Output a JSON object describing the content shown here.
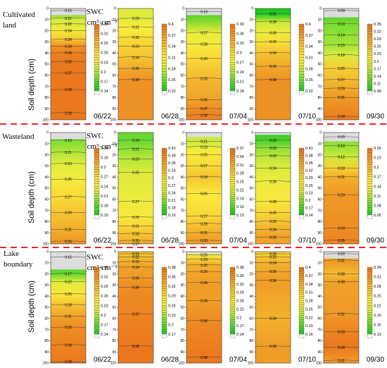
{
  "figure": {
    "y_axis_label": "Soil depth (cm)",
    "colorbar_title_line1": "SWC",
    "colorbar_title_line2": "(cm³·cm⁻³)",
    "y_ticks": [
      "0",
      "10",
      "20",
      "30",
      "40",
      "50",
      "60",
      "70",
      "80",
      "90",
      "100"
    ]
  },
  "chart_data": {
    "type": "heatmap",
    "xlabel": "",
    "ylabel": "Soil depth (cm)",
    "ylim": [
      0,
      100
    ],
    "rows": [
      {
        "label_lines": [
          "Cultivated",
          "land"
        ],
        "panels": [
          {
            "date": "06/22",
            "top_depth": 6,
            "iso": [
              {
                "d": 2,
                "v": "0.15"
              },
              {
                "d": 9,
                "v": "0.21"
              },
              {
                "d": 14,
                "v": "0.22"
              },
              {
                "d": 20,
                "v": "0.24"
              },
              {
                "d": 28,
                "v": "0.28"
              },
              {
                "d": 34,
                "v": "0.33"
              },
              {
                "d": 40,
                "v": "0.34"
              },
              {
                "d": 48,
                "v": "0.36"
              },
              {
                "d": 58,
                "v": "0.37"
              },
              {
                "d": 73,
                "v": "0.38"
              },
              {
                "d": 94,
                "v": "0.39"
              }
            ],
            "cbar": [
              "0.35",
              "0.32",
              "0.29",
              "0.26",
              "0.23",
              "0.2",
              "0.17",
              "0.14"
            ]
          },
          {
            "date": "06/28",
            "top_depth": 0,
            "iso": [
              {
                "d": 9,
                "v": "0.29"
              },
              {
                "d": 17,
                "v": "0.31"
              },
              {
                "d": 26,
                "v": "0.32"
              },
              {
                "d": 34,
                "v": "0.33"
              },
              {
                "d": 44,
                "v": "0.34"
              },
              {
                "d": 54,
                "v": "0.36"
              },
              {
                "d": 64,
                "v": "0.38"
              }
            ],
            "cbar": [
              "0.4",
              "0.37",
              "0.34",
              "0.31",
              "0.28",
              "0.25",
              "0.22"
            ]
          },
          {
            "date": "07/04",
            "top_depth": 6,
            "iso": [
              {
                "d": 3,
                "v": "0.19"
              },
              {
                "d": 22,
                "v": "0.27"
              },
              {
                "d": 32,
                "v": "0.28"
              },
              {
                "d": 45,
                "v": "0.30"
              },
              {
                "d": 63,
                "v": "0.33"
              },
              {
                "d": 82,
                "v": "0.35"
              },
              {
                "d": 90,
                "v": "0.37"
              },
              {
                "d": 96,
                "v": "0.38"
              }
            ],
            "cbar": [
              "0.39",
              "0.36",
              "0.33",
              "0.3",
              "0.27",
              "0.24",
              "0.21",
              "0.18"
            ]
          },
          {
            "date": "07/10",
            "top_depth": 0,
            "iso": [
              {
                "d": 5,
                "v": "0.21"
              },
              {
                "d": 12,
                "v": "0.28"
              },
              {
                "d": 22,
                "v": "0.30"
              },
              {
                "d": 30,
                "v": "0.32"
              },
              {
                "d": 40,
                "v": "0.34"
              },
              {
                "d": 52,
                "v": "0.36"
              },
              {
                "d": 64,
                "v": "0.38"
              }
            ],
            "cbar": [
              "0.4",
              "0.37",
              "0.34",
              "0.31",
              "0.28",
              "0.25",
              "0.22"
            ]
          },
          {
            "date": "09/30",
            "top_depth": 8,
            "iso": [
              {
                "d": 2,
                "v": "0.09"
              },
              {
                "d": 14,
                "v": "0.13"
              },
              {
                "d": 24,
                "v": "0.14"
              },
              {
                "d": 33,
                "v": "0.15"
              },
              {
                "d": 42,
                "v": "0.18"
              },
              {
                "d": 54,
                "v": "0.25"
              },
              {
                "d": 64,
                "v": "0.27"
              },
              {
                "d": 72,
                "v": "0.29"
              },
              {
                "d": 80,
                "v": "0.31"
              },
              {
                "d": 97,
                "v": "0.34"
              }
            ],
            "cbar": [
              "0.35",
              "0.32",
              "0.29",
              "0.26",
              "0.23",
              "0.2",
              "0.17",
              "0.14",
              "0.11",
              "0.08"
            ]
          }
        ]
      },
      {
        "label_lines": [
          "Wasteland"
        ],
        "panels": [
          {
            "date": "06/22",
            "top_depth": 6,
            "iso": [
              {
                "d": 7,
                "v": "0.19"
              },
              {
                "d": 18,
                "v": "0.21"
              },
              {
                "d": 28,
                "v": "0.23"
              },
              {
                "d": 42,
                "v": "0.25"
              },
              {
                "d": 58,
                "v": "0.27"
              },
              {
                "d": 72,
                "v": "0.29"
              },
              {
                "d": 87,
                "v": "0.31"
              },
              {
                "d": 98,
                "v": "0.33"
              }
            ],
            "cbar": [
              "0.36",
              "0.33",
              "0.3",
              "0.27",
              "0.24",
              "0.21",
              "0.18",
              "0.15"
            ]
          },
          {
            "date": "06/28",
            "top_depth": 0,
            "iso": [
              {
                "d": 7,
                "v": "0.19"
              },
              {
                "d": 15,
                "v": "0.21"
              },
              {
                "d": 24,
                "v": "0.23"
              },
              {
                "d": 36,
                "v": "0.25"
              },
              {
                "d": 62,
                "v": "0.27"
              },
              {
                "d": 76,
                "v": "0.29"
              },
              {
                "d": 84,
                "v": "0.31"
              },
              {
                "d": 91,
                "v": "0.33"
              },
              {
                "d": 97,
                "v": "0.35"
              },
              {
                "d": 100,
                "v": "0.37"
              }
            ],
            "cbar": [
              "0.42",
              "0.39",
              "0.36",
              "0.33",
              "0.3",
              "0.27",
              "0.24",
              "0.21",
              "0.18",
              "0.15"
            ]
          },
          {
            "date": "07/04",
            "top_depth": 4,
            "iso": [
              {
                "d": 8,
                "v": "0.21"
              },
              {
                "d": 13,
                "v": "0.23"
              },
              {
                "d": 20,
                "v": "0.25"
              },
              {
                "d": 30,
                "v": "0.27"
              },
              {
                "d": 40,
                "v": "0.29"
              },
              {
                "d": 55,
                "v": "0.25"
              },
              {
                "d": 75,
                "v": "0.27"
              },
              {
                "d": 82,
                "v": "0.29"
              },
              {
                "d": 90,
                "v": "0.31"
              },
              {
                "d": 97,
                "v": "0.33"
              }
            ],
            "cbar": [
              "0.37",
              "0.34",
              "0.31",
              "0.28",
              "0.25",
              "0.22",
              "0.19",
              "0.16",
              "0.13"
            ]
          },
          {
            "date": "07/10",
            "top_depth": 2,
            "iso": [
              {
                "d": 7,
                "v": "0.16"
              },
              {
                "d": 14,
                "v": "0.20"
              },
              {
                "d": 21,
                "v": "0.22"
              },
              {
                "d": 32,
                "v": "0.24"
              },
              {
                "d": 44,
                "v": "0.26"
              },
              {
                "d": 62,
                "v": "0.28"
              },
              {
                "d": 72,
                "v": "0.30"
              },
              {
                "d": 80,
                "v": "0.32"
              },
              {
                "d": 87,
                "v": "0.34"
              },
              {
                "d": 94,
                "v": "0.36"
              }
            ],
            "cbar": [
              "0.41",
              "0.38",
              "0.35",
              "0.32",
              "0.29",
              "0.26",
              "0.23",
              "0.2",
              "0.17",
              "0.14"
            ]
          },
          {
            "date": "09/30",
            "top_depth": 8,
            "iso": [
              {
                "d": 4,
                "v": "0.09"
              },
              {
                "d": 12,
                "v": "0.10"
              },
              {
                "d": 22,
                "v": "0.12"
              },
              {
                "d": 32,
                "v": "0.18"
              },
              {
                "d": 40,
                "v": "0.21"
              },
              {
                "d": 56,
                "v": "0.23"
              },
              {
                "d": 86,
                "v": "0.24"
              },
              {
                "d": 97,
                "v": "0.25"
              }
            ],
            "cbar": [
              "0.26",
              "0.23",
              "0.2",
              "0.17",
              "0.14",
              "0.11",
              "0.08",
              "0.05"
            ]
          }
        ]
      },
      {
        "label_lines": [
          "Lake",
          "boundary"
        ],
        "panels": [
          {
            "date": "06/22",
            "top_depth": 16,
            "iso": [
              {
                "d": 5,
                "v": "0.15"
              },
              {
                "d": 20,
                "v": "0.17"
              },
              {
                "d": 27,
                "v": "0.22"
              },
              {
                "d": 38,
                "v": "0.25"
              },
              {
                "d": 48,
                "v": "0.28"
              },
              {
                "d": 58,
                "v": "0.31"
              },
              {
                "d": 68,
                "v": "0.33"
              },
              {
                "d": 84,
                "v": "0.34"
              },
              {
                "d": 99,
                "v": "0.39"
              }
            ],
            "cbar": [
              "0.35",
              "0.32",
              "0.29",
              "0.26",
              "0.23",
              "0.2",
              "0.17",
              "0.14"
            ]
          },
          {
            "date": "06/28",
            "top_depth": 0,
            "iso": [
              {
                "d": 2,
                "v": "0.31"
              },
              {
                "d": 5,
                "v": "0.32"
              },
              {
                "d": 9,
                "v": "0.33"
              },
              {
                "d": 14,
                "v": "0.34"
              },
              {
                "d": 24,
                "v": "0.35"
              },
              {
                "d": 32,
                "v": "0.36"
              },
              {
                "d": 56,
                "v": "0.37"
              },
              {
                "d": 85,
                "v": "0.38"
              }
            ],
            "cbar": [
              "0.38",
              "0.35",
              "0.32",
              "0.29",
              "0.26",
              "0.23",
              "0.2",
              "0.17"
            ]
          },
          {
            "date": "07/04",
            "top_depth": 2,
            "iso": [
              {
                "d": 3,
                "v": "0.25"
              },
              {
                "d": 7,
                "v": "0.29"
              },
              {
                "d": 12,
                "v": "0.32"
              },
              {
                "d": 18,
                "v": "0.33"
              },
              {
                "d": 28,
                "v": "0.34"
              },
              {
                "d": 44,
                "v": "0.34"
              },
              {
                "d": 62,
                "v": "0.36"
              },
              {
                "d": 95,
                "v": "0.38"
              }
            ],
            "cbar": [
              "0.38",
              "0.35",
              "0.32",
              "0.29",
              "0.26",
              "0.23",
              "0.2",
              "0.17",
              "0.14"
            ]
          },
          {
            "date": "07/10",
            "top_depth": 0,
            "iso": [
              {
                "d": 2,
                "v": "0.30"
              },
              {
                "d": 5,
                "v": "0.32"
              },
              {
                "d": 10,
                "v": "0.34"
              },
              {
                "d": 18,
                "v": "0.35"
              },
              {
                "d": 26,
                "v": "0.36"
              },
              {
                "d": 60,
                "v": "0.34"
              },
              {
                "d": 85,
                "v": "0.36"
              }
            ],
            "cbar": [
              "0.4",
              "0.37",
              "0.34",
              "0.31",
              "0.28",
              "0.25",
              "0.22",
              "0.19",
              "0.16"
            ]
          },
          {
            "date": "09/30",
            "top_depth": 6,
            "iso": [
              {
                "d": 2,
                "v": "0.22"
              },
              {
                "d": 8,
                "v": "0.31"
              },
              {
                "d": 20,
                "v": "0.28"
              },
              {
                "d": 27,
                "v": "0.30"
              },
              {
                "d": 56,
                "v": "0.31"
              },
              {
                "d": 72,
                "v": "0.33"
              },
              {
                "d": 86,
                "v": "0.34"
              },
              {
                "d": 98,
                "v": "0.31"
              }
            ],
            "cbar": [
              "0.34",
              "0.31",
              "0.28",
              "0.25",
              "0.22",
              "0.19",
              "0.16",
              "0.13"
            ]
          }
        ]
      }
    ]
  }
}
